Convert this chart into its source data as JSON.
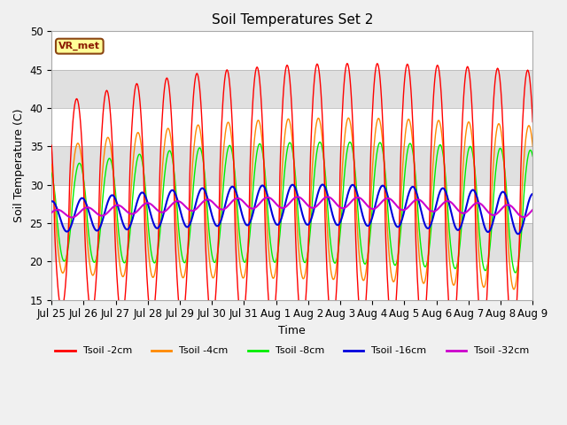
{
  "title": "Soil Temperatures Set 2",
  "xlabel": "Time",
  "ylabel": "Soil Temperature (C)",
  "ylim": [
    15,
    50
  ],
  "colors": {
    "Tsoil -2cm": "#ff0000",
    "Tsoil -4cm": "#ff8800",
    "Tsoil -8cm": "#00ee00",
    "Tsoil -16cm": "#0000dd",
    "Tsoil -32cm": "#cc00cc"
  },
  "legend_label": "VR_met",
  "xtick_labels": [
    "Jul 25",
    "Jul 26",
    "Jul 27",
    "Jul 28",
    "Jul 29",
    "Jul 30",
    "Jul 31",
    "Aug 1",
    "Aug 2",
    "Aug 3",
    "Aug 4",
    "Aug 5",
    "Aug 6",
    "Aug 7",
    "Aug 8",
    "Aug 9"
  ],
  "num_days": 16,
  "fig_bg": "#f0f0f0",
  "plot_bg": "#e8e8e8",
  "band_colors": [
    "#ffffff",
    "#e0e0e0"
  ]
}
